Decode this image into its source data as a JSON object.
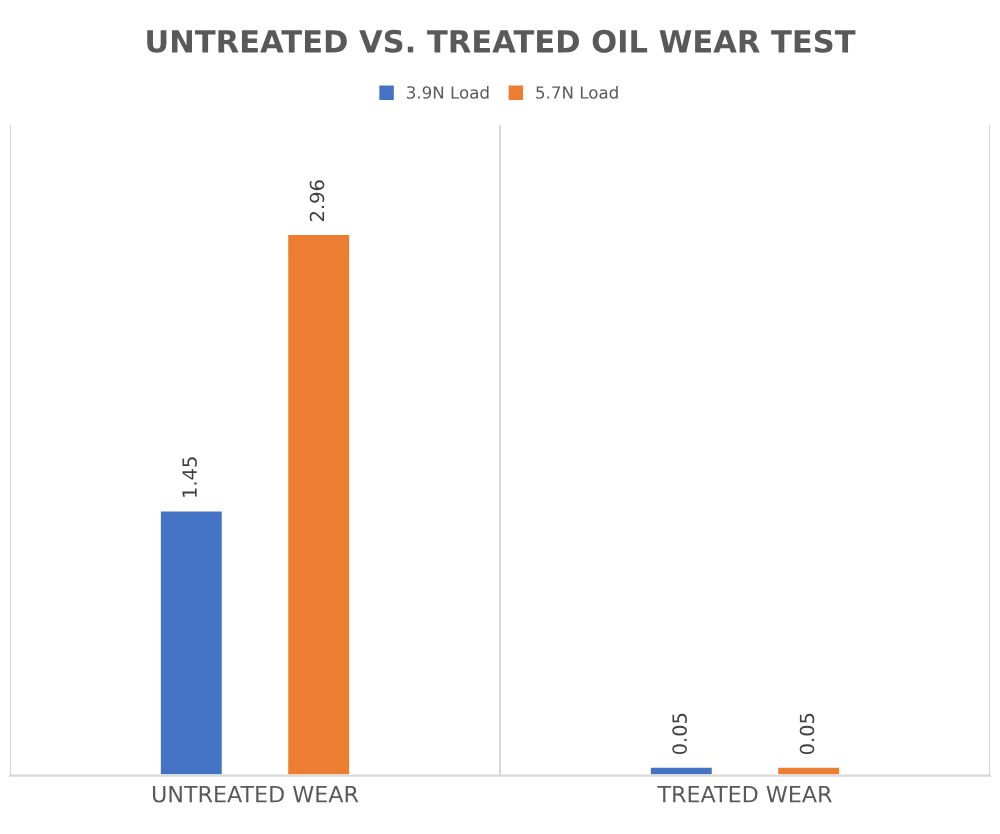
{
  "chart_data": {
    "type": "bar",
    "title": "UNTREATED VS. TREATED OIL WEAR TEST",
    "categories": [
      "UNTREATED WEAR",
      "TREATED WEAR"
    ],
    "series": [
      {
        "name": "3.9N Load",
        "color": "#4472c4",
        "values": [
          1.45,
          0.05
        ]
      },
      {
        "name": "5.7N Load",
        "color": "#ed7d31",
        "values": [
          2.96,
          0.05
        ]
      }
    ],
    "data_labels": true,
    "grid": "x",
    "legend": "top"
  }
}
